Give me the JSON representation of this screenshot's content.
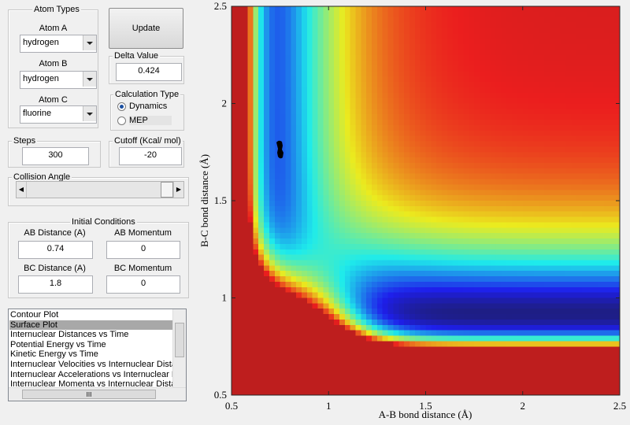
{
  "atom_types": {
    "title": "Atom Types",
    "atom_a": {
      "label": "Atom A",
      "value": "hydrogen"
    },
    "atom_b": {
      "label": "Atom B",
      "value": "hydrogen"
    },
    "atom_c": {
      "label": "Atom C",
      "value": "fluorine"
    }
  },
  "update_button": "Update",
  "delta_value": {
    "label": "Delta Value",
    "value": 0.424
  },
  "calculation_type": {
    "title": "Calculation Type",
    "options": [
      "Dynamics",
      "MEP"
    ],
    "selected": 0
  },
  "steps": {
    "label": "Steps",
    "value": 300
  },
  "cutoff": {
    "label": "Cutoff (Kcal/ mol)",
    "value": -20
  },
  "collision_angle": {
    "label": "Collision Angle"
  },
  "initial_conditions": {
    "title": "Initial Conditions",
    "ab_distance": {
      "label": "AB Distance (A)",
      "value": 0.74
    },
    "ab_momentum": {
      "label": "AB Momentum",
      "value": 0
    },
    "bc_distance": {
      "label": "BC Distance (A)",
      "value": 1.8
    },
    "bc_momentum": {
      "label": "BC Momentum",
      "value": 0
    }
  },
  "plot_list": {
    "items": [
      "Contour Plot",
      "Surface Plot",
      "Internuclear Distances vs Time",
      "Potential Energy vs Time",
      "Kinetic Energy vs Time",
      "Internuclear Velocities vs Internuclear Distance",
      "Internuclear Accelerations vs Internuclear Dista",
      "Internuclear Momenta vs Internuclear Distance"
    ],
    "selected": 1
  },
  "chart_data": {
    "type": "contour",
    "xlabel": "A-B bond distance (Å)",
    "ylabel": "B-C bond distance (Å)",
    "xlim": [
      0.5,
      2.5
    ],
    "ylim": [
      0.5,
      2.5
    ],
    "xticks": [
      0.5,
      1,
      1.5,
      2,
      2.5
    ],
    "yticks": [
      0.5,
      1,
      1.5,
      2,
      2.5
    ]
  }
}
